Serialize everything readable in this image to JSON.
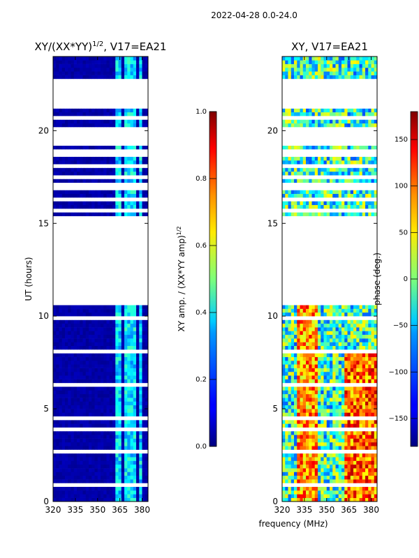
{
  "suptitle": "2022-04-28 0.0-24.0",
  "chart_data": [
    {
      "type": "heatmap",
      "title_main": "XY/(XX*YY)",
      "title_sup": "1/2",
      "title_suffix": ", V17=EA21",
      "xlabel": "",
      "ylabel": "UT (hours)",
      "xlim": [
        320,
        384
      ],
      "ylim": [
        0,
        24
      ],
      "xticks": [
        320,
        335,
        350,
        365,
        380
      ],
      "yticks": [
        0,
        5,
        10,
        15,
        20
      ],
      "data_gaps_ut": [
        [
          3.9,
          4.1
        ],
        [
          10.6,
          15.4
        ],
        [
          19.2,
          20.1
        ],
        [
          21.2,
          22.3
        ],
        [
          22.6,
          22.9
        ]
      ],
      "bright_channels_mhz": [
        [
          362,
          366
        ],
        [
          368,
          371
        ],
        [
          373,
          376
        ],
        [
          378,
          380
        ]
      ],
      "colorbar": {
        "label_main": "XY amp. / (XX*YY amp)",
        "label_sup": "1/2",
        "range": [
          0.0,
          1.0
        ],
        "ticks": [
          "0.0",
          "0.2",
          "0.4",
          "0.6",
          "0.8",
          "1.0"
        ]
      }
    },
    {
      "type": "heatmap",
      "title": "XY, V17=EA21",
      "xlabel": "frequency (MHz)",
      "xlim": [
        320,
        384
      ],
      "ylim": [
        0,
        24
      ],
      "xticks": [
        320,
        335,
        350,
        365,
        380
      ],
      "yticks": [
        0,
        5,
        10,
        15,
        20
      ],
      "data_gaps_ut": [
        [
          3.9,
          4.1
        ],
        [
          10.6,
          15.4
        ],
        [
          19.2,
          20.1
        ],
        [
          21.2,
          22.3
        ],
        [
          22.6,
          22.9
        ]
      ],
      "colorbar": {
        "label": "phase (deg.)",
        "range": [
          -180,
          180
        ],
        "ticks": [
          "−150",
          "−100",
          "−50",
          "0",
          "50",
          "100",
          "150"
        ]
      }
    }
  ]
}
